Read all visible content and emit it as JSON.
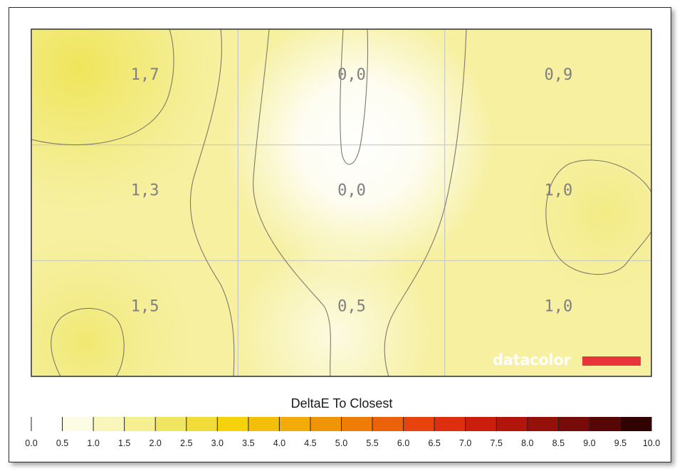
{
  "chart_data": {
    "type": "heatmap",
    "title": "",
    "rows": 3,
    "columns": 3,
    "cells": [
      [
        "1,7",
        "0,0",
        "0,9"
      ],
      [
        "1,3",
        "0,0",
        "1,0"
      ],
      [
        "1,5",
        "0,5",
        "1,0"
      ]
    ],
    "values": [
      [
        1.7,
        0.0,
        0.9
      ],
      [
        1.3,
        0.0,
        1.0
      ],
      [
        1.5,
        0.5,
        1.0
      ]
    ],
    "colorbar": {
      "label": "DeltaE To Closest",
      "range": [
        0,
        10
      ],
      "ticks": [
        "0.0",
        "0.5",
        "1.0",
        "1.5",
        "2.0",
        "2.5",
        "3.0",
        "3.5",
        "4.0",
        "4.5",
        "5.0",
        "5.5",
        "6.0",
        "6.5",
        "7.0",
        "7.5",
        "8.0",
        "8.5",
        "9.0",
        "9.5",
        "10.0"
      ],
      "colors": [
        "#ffffff",
        "#fcfbe3",
        "#f9f6bb",
        "#f5ef92",
        "#f0e561",
        "#f2dc3a",
        "#f5d20c",
        "#f4bf0a",
        "#f2ab08",
        "#f09507",
        "#ee7c07",
        "#ec620a",
        "#e8420d",
        "#dd2e10",
        "#cc1e0d",
        "#b2160b",
        "#951009",
        "#770b07",
        "#560605",
        "#300202"
      ]
    },
    "contour_lines": true,
    "grid": true
  },
  "logo": {
    "text": "datacolor",
    "accent_color": "#e8343a"
  }
}
